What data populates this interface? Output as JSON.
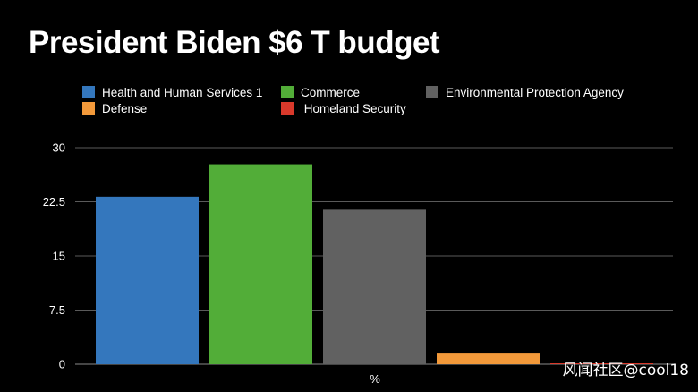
{
  "chart_data": {
    "type": "bar",
    "title": "President Biden $6 T budget",
    "categories": [
      "%"
    ],
    "series": [
      {
        "name": "Health and Human Services 1",
        "color": "#3477bd",
        "values": [
          23.2
        ]
      },
      {
        "name": "Commerce",
        "color": "#52ad38",
        "values": [
          27.7
        ]
      },
      {
        "name": "Environmental Protection Agency",
        "color": "#616161",
        "values": [
          21.4
        ]
      },
      {
        "name": "Defense",
        "color": "#f2993a",
        "values": [
          1.6
        ]
      },
      {
        "name": " Homeland Security",
        "color": "#d9392b",
        "values": [
          0.1
        ]
      }
    ],
    "xlabel": "%",
    "ylabel": "",
    "ylim": [
      0,
      30
    ],
    "yticks": [
      "0",
      "7.5",
      "15",
      "22.5",
      "30"
    ],
    "grid": true,
    "legend_position": "top"
  },
  "watermark": "风闻社区@cool18"
}
